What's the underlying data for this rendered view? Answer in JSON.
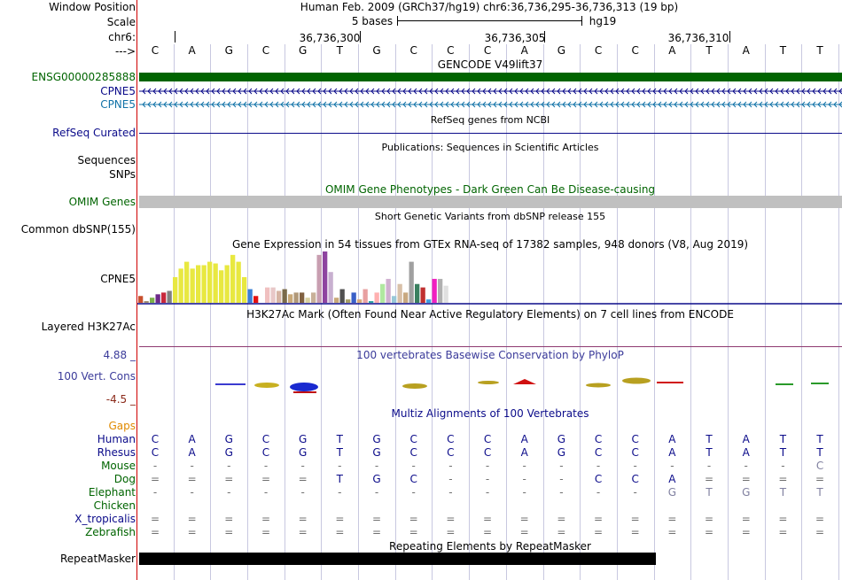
{
  "header": {
    "window_position_label": "Window Position",
    "window_position_value": "Human Feb. 2009 (GRCh37/hg19)   chr6:36,736,295-36,736,313 (19 bp)",
    "scale_label": "Scale",
    "scale_value": "5 bases",
    "scale_db": "hg19",
    "chrom_label": "chr6:",
    "coord_labels": [
      "36,736,300",
      "36,736,305",
      "36,736,310"
    ],
    "strand_label": "--->",
    "bases": [
      "C",
      "A",
      "G",
      "C",
      "G",
      "T",
      "G",
      "C",
      "C",
      "C",
      "A",
      "G",
      "C",
      "C",
      "A",
      "T",
      "A",
      "T",
      "T"
    ]
  },
  "tracks": {
    "gencode": {
      "title": "GENCODE V49lift37",
      "genes": [
        "ENSG00000285888",
        "CPNE5",
        "CPNE5"
      ],
      "colors": [
        "#006400",
        "#0b0b8a",
        "#1273a8"
      ]
    },
    "refseq": {
      "title": "RefSeq genes from NCBI",
      "label": "RefSeq Curated"
    },
    "pubs": {
      "title": "Publications: Sequences in Scientific Articles",
      "labels": [
        "Sequences",
        "SNPs"
      ]
    },
    "omim": {
      "title": "OMIM Gene Phenotypes - Dark Green Can Be Disease-causing",
      "label": "OMIM Genes"
    },
    "dbsnp": {
      "title": "Short Genetic Variants from dbSNP release 155",
      "label": "Common dbSNP(155)"
    },
    "gtex": {
      "title": "Gene Expression in 54 tissues from GTEx RNA-seq of 17382 samples, 948 donors (V8, Aug 2019)",
      "label": "CPNE5"
    },
    "h3k27ac": {
      "title": "H3K27Ac Mark (Often Found Near Active Regulatory Elements) on 7 cell lines from ENCODE",
      "label": "Layered H3K27Ac"
    },
    "phylop": {
      "title": "100 vertebrates Basewise Conservation by PhyloP",
      "label": "100 Vert. Cons",
      "max": "4.88 _",
      "min": "-4.5 _"
    },
    "multiz": {
      "title": "Multiz Alignments of 100 Vertebrates",
      "gaps_label": "Gaps",
      "species": [
        {
          "name": "Human",
          "color": "#0b0b8a",
          "row": [
            "C",
            "A",
            "G",
            "C",
            "G",
            "T",
            "G",
            "C",
            "C",
            "C",
            "A",
            "G",
            "C",
            "C",
            "A",
            "T",
            "A",
            "T",
            "T"
          ]
        },
        {
          "name": "Rhesus",
          "color": "#0b0b8a",
          "row": [
            "C",
            "A",
            "G",
            "C",
            "G",
            "T",
            "G",
            "C",
            "C",
            "C",
            "A",
            "G",
            "C",
            "C",
            "A",
            "T",
            "A",
            "T",
            "T"
          ]
        },
        {
          "name": "Mouse",
          "color": "#006400",
          "row": [
            "-",
            "-",
            "-",
            "-",
            "-",
            "-",
            "-",
            "-",
            "-",
            "-",
            "-",
            "-",
            "-",
            "-",
            "-",
            "-",
            "-",
            "-",
            "C"
          ]
        },
        {
          "name": "Dog",
          "color": "#006400",
          "row": [
            "=",
            "=",
            "=",
            "=",
            "=",
            "T",
            "G",
            "C",
            "-",
            "-",
            "-",
            "-",
            "C",
            "C",
            "A",
            "=",
            "=",
            "=",
            "="
          ]
        },
        {
          "name": "Elephant",
          "color": "#006400",
          "row": [
            "-",
            "-",
            "-",
            "-",
            "-",
            "-",
            "-",
            "-",
            "-",
            "-",
            "-",
            "-",
            "-",
            "-",
            "G",
            "T",
            "G",
            "T",
            "T"
          ]
        },
        {
          "name": "Chicken",
          "color": "#006400",
          "row": []
        },
        {
          "name": "X_tropicalis",
          "color": "#0b0b8a",
          "row": [
            "=",
            "=",
            "=",
            "=",
            "=",
            "=",
            "=",
            "=",
            "=",
            "=",
            "=",
            "=",
            "=",
            "=",
            "=",
            "=",
            "=",
            "=",
            "="
          ]
        },
        {
          "name": "Zebrafish",
          "color": "#006400",
          "row": [
            "=",
            "=",
            "=",
            "=",
            "=",
            "=",
            "=",
            "=",
            "=",
            "=",
            "=",
            "=",
            "=",
            "=",
            "=",
            "=",
            "=",
            "=",
            "="
          ]
        }
      ]
    },
    "repeatmasker": {
      "title": "Repeating Elements by RepeatMasker",
      "label": "RepeatMasker"
    }
  },
  "chart_data": {
    "type": "bar",
    "title": "Gene Expression in 54 tissues from GTEx RNA-seq of 17382 samples, 948 donors (V8, Aug 2019)",
    "xlabel": "",
    "ylabel": "",
    "values": [
      4,
      1,
      3,
      5,
      6,
      7,
      15,
      20,
      24,
      20,
      22,
      22,
      24,
      23,
      19,
      22,
      28,
      24,
      15,
      8,
      4,
      0,
      9,
      9,
      7,
      8,
      5,
      6,
      6,
      3,
      6,
      28,
      30,
      18,
      3,
      8,
      2,
      6,
      2,
      8,
      1,
      6,
      11,
      14,
      4,
      11,
      6,
      24,
      11,
      9,
      2,
      14,
      14,
      10
    ],
    "colors": [
      "#c8502d",
      "#9e8a6e",
      "#7bb04a",
      "#6d2a8a",
      "#c8283c",
      "#808080",
      "#e8e840",
      "#e8e840",
      "#e8e840",
      "#e8e840",
      "#e8e840",
      "#e8e840",
      "#e8e840",
      "#e8e840",
      "#e8e840",
      "#e8e840",
      "#e8e840",
      "#e8e840",
      "#e8e840",
      "#3a80d6",
      "#e31010",
      "#ffffff",
      "#f0c0c0",
      "#e8c8c8",
      "#d6b4a4",
      "#7a6a4a",
      "#c8a878",
      "#b09878",
      "#806040",
      "#d8d0a0",
      "#c8b098",
      "#c89eb0",
      "#8e44a0",
      "#c8b0d0",
      "#c8a878",
      "#505050",
      "#a8a068",
      "#3a60c8",
      "#d8a878",
      "#e8a0a0",
      "#2aa0a0",
      "#ffb0b0",
      "#b0e8a0",
      "#d0b0d0",
      "#98c8d8",
      "#d8c0a8",
      "#c8a880",
      "#a0a0a0",
      "#3a8060",
      "#c03030",
      "#40a0e0",
      "#f020c0",
      "#b0b0b0",
      "#e0e0e0"
    ]
  }
}
